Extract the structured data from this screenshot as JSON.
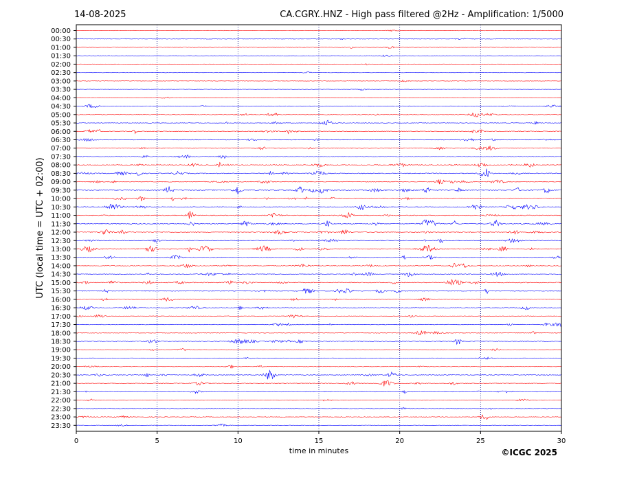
{
  "header": {
    "date": "14-08-2025",
    "title": "CA.CGRY..HNZ - High pass filtered @2Hz - Amplification: 1/5000"
  },
  "copyright": "©ICGC 2025",
  "colors": {
    "red": "#ff0000",
    "blue": "#0000ff",
    "grid": "#000080",
    "axes": "#000000"
  },
  "chart_data": {
    "type": "line",
    "title": "CA.CGRY..HNZ - High pass filtered @2Hz - Amplification: 1/5000",
    "xlabel": "time in minutes",
    "ylabel": "UTC (local time = UTC + 02:00)",
    "xlim": [
      0,
      30
    ],
    "xticks": [
      0,
      5,
      10,
      15,
      20,
      25,
      30
    ],
    "xtick_labels": [
      "0",
      "5",
      "10",
      "15",
      "20",
      "25",
      "30"
    ],
    "grid": "vertical dotted lines at 5, 10, 15, 20, 25 minutes",
    "rows": [
      "00:00",
      "00:30",
      "01:00",
      "01:30",
      "02:00",
      "02:30",
      "03:00",
      "03:30",
      "04:00",
      "04:30",
      "05:00",
      "05:30",
      "06:00",
      "06:30",
      "07:00",
      "07:30",
      "08:00",
      "08:30",
      "09:00",
      "09:30",
      "10:00",
      "10:30",
      "11:00",
      "11:30",
      "12:00",
      "12:30",
      "13:00",
      "13:30",
      "14:00",
      "14:30",
      "15:00",
      "15:30",
      "16:00",
      "16:30",
      "17:00",
      "17:30",
      "18:00",
      "18:30",
      "19:00",
      "19:30",
      "20:00",
      "20:30",
      "21:00",
      "21:30",
      "22:00",
      "22:30",
      "23:00",
      "23:30"
    ],
    "row_colors": [
      "red",
      "blue"
    ],
    "activity": [
      0.08,
      0.12,
      0.15,
      0.05,
      0.04,
      0.05,
      0.1,
      0.05,
      0.05,
      0.35,
      0.45,
      0.35,
      0.6,
      0.4,
      0.45,
      0.3,
      0.7,
      0.75,
      0.6,
      0.85,
      0.65,
      0.75,
      0.65,
      0.8,
      0.7,
      0.5,
      0.8,
      0.45,
      0.5,
      0.5,
      0.75,
      0.6,
      0.35,
      0.4,
      0.35,
      0.4,
      0.3,
      0.6,
      0.2,
      0.15,
      0.25,
      0.6,
      0.45,
      0.35,
      0.2,
      0.12,
      0.25,
      0.15
    ]
  }
}
